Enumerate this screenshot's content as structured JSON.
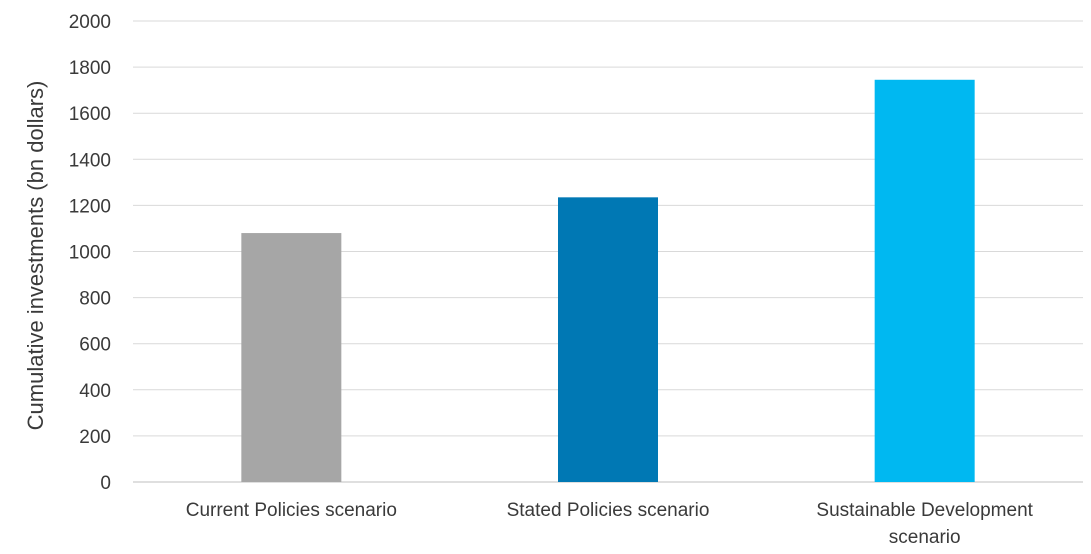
{
  "chart_data": {
    "type": "bar",
    "title": "",
    "xlabel": "",
    "ylabel": "Cumulative investments (bn dollars)",
    "ylim": [
      0,
      2000
    ],
    "yticks": [
      0,
      200,
      400,
      600,
      800,
      1000,
      1200,
      1400,
      1600,
      1800,
      2000
    ],
    "grid": true,
    "legend": "none",
    "categories": [
      [
        "Current Policies scenario"
      ],
      [
        "Stated Policies scenario"
      ],
      [
        "Sustainable Development",
        "scenario"
      ]
    ],
    "values": [
      1080,
      1235,
      1745
    ],
    "colors": [
      "#a6a6a6",
      "#0078b4",
      "#00b8f1"
    ]
  }
}
